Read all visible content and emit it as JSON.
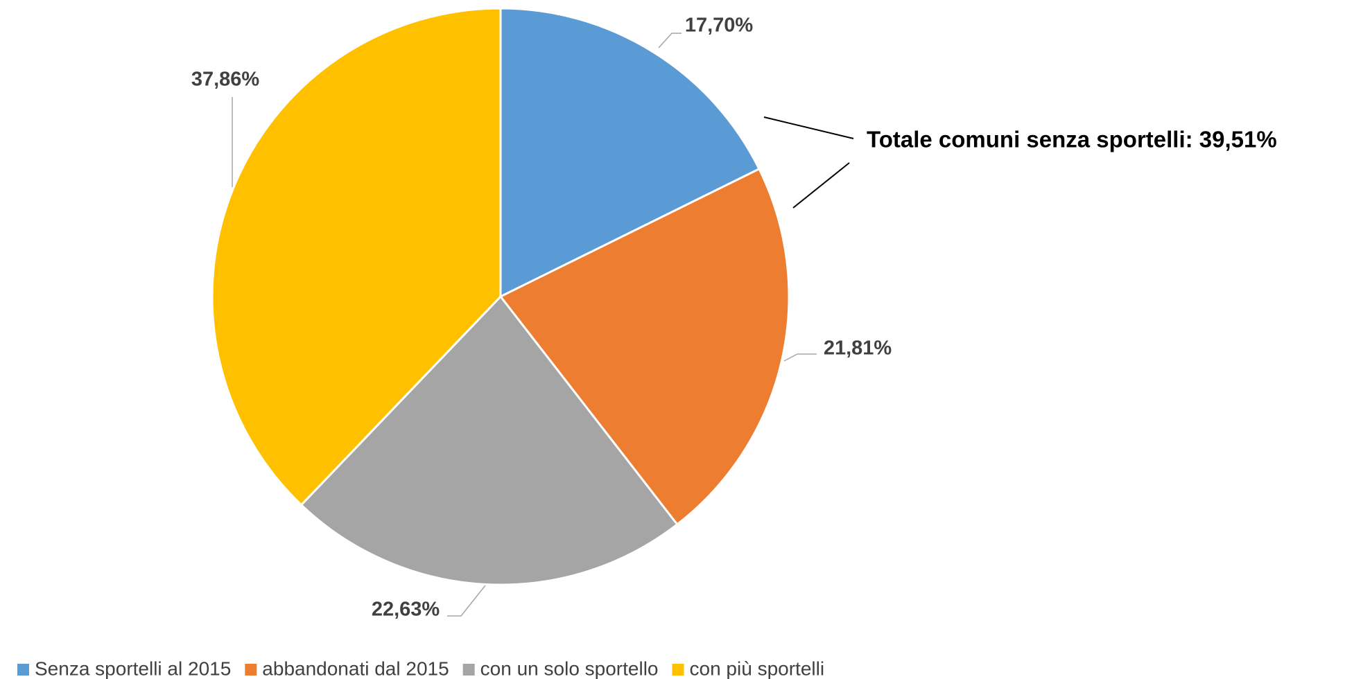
{
  "chart_data": {
    "type": "pie",
    "categories": [
      "Senza sportelli al 2015",
      "abbandonati dal 2015",
      "con un solo sportello",
      "con più sportelli"
    ],
    "values": [
      17.7,
      21.81,
      22.63,
      37.86
    ],
    "value_labels": [
      "17,70%",
      "21,81%",
      "22,63%",
      "37,86%"
    ],
    "colors": [
      "#5b9bd5",
      "#ed7d31",
      "#a5a5a5",
      "#ffc000"
    ],
    "annotation": "Totale comuni senza sportelli: 39,51%",
    "legend": "bottom"
  }
}
